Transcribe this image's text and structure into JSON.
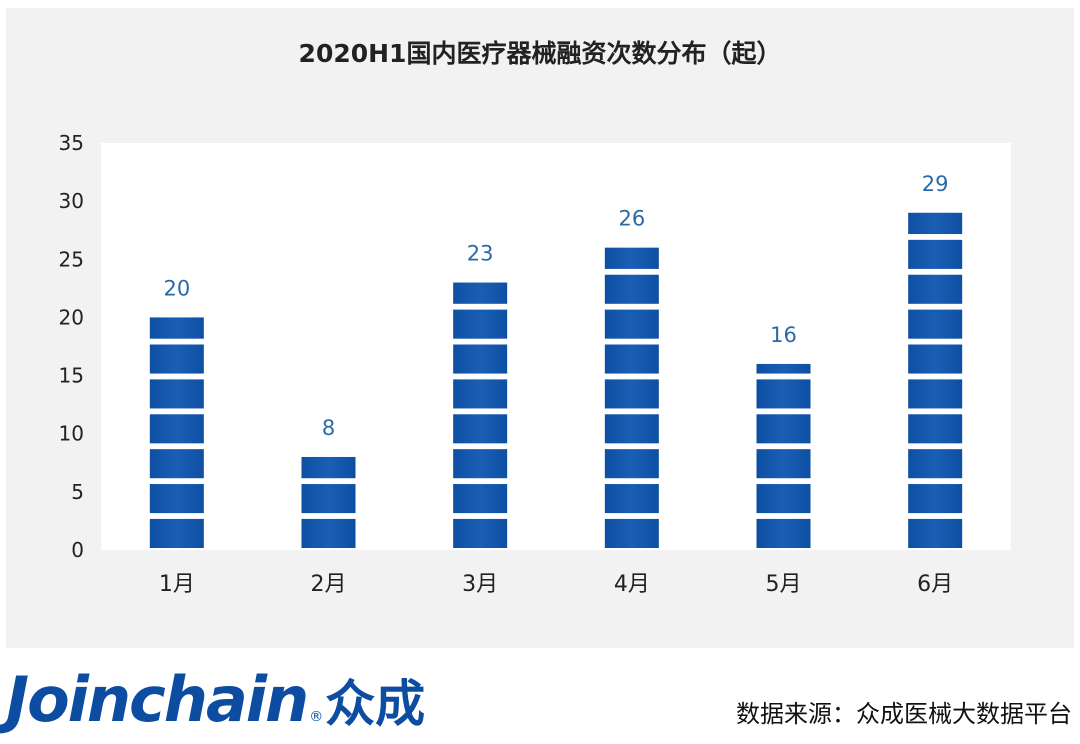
{
  "title": "2020H1国内医疗器械融资次数分布（起）",
  "chart_data": {
    "type": "bar",
    "title": "2020H1国内医疗器械融资次数分布（起）",
    "categories": [
      "1月",
      "2月",
      "3月",
      "4月",
      "5月",
      "6月"
    ],
    "values": [
      20,
      8,
      23,
      26,
      16,
      29
    ],
    "ylim": [
      0,
      35
    ],
    "yticks": [
      0,
      5,
      10,
      15,
      20,
      25,
      30,
      35
    ],
    "xlabel": "",
    "ylabel": "",
    "grid": false,
    "legend": "none",
    "bar_color": "#1a5fb4",
    "label_color": "#2a6aa8"
  },
  "footer": {
    "logo_text": "Joinchain",
    "logo_reg": "®",
    "logo_cn": "众成",
    "source": "数据来源：众成医械大数据平台"
  }
}
